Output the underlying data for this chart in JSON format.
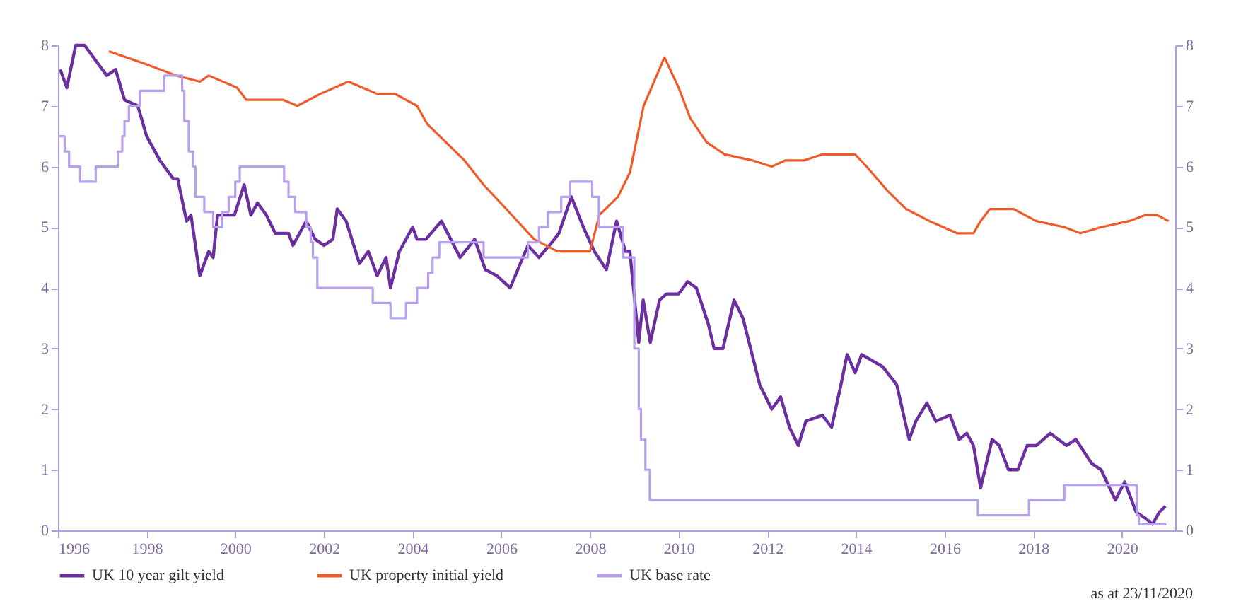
{
  "chart_data": {
    "type": "line",
    "xlim": [
      1996,
      2021.2
    ],
    "xticks": [
      1996,
      1998,
      2000,
      2002,
      2004,
      2006,
      2008,
      2010,
      2012,
      2014,
      2016,
      2018,
      2020
    ],
    "ylim": [
      0,
      8
    ],
    "yticks": [
      0,
      1,
      2,
      3,
      4,
      5,
      6,
      7,
      8
    ],
    "y2lim": [
      0,
      8
    ],
    "y2ticks": [
      0,
      1,
      2,
      3,
      4,
      5,
      6,
      7,
      8
    ],
    "legend": "bottom",
    "grid": false,
    "marker": "none",
    "line_style": "solid",
    "annotations": [
      "as at 23/11/2020"
    ],
    "series": [
      {
        "name": "UK 10 year gilt yield",
        "color": "#6b2fa0",
        "x": [
          1996.05,
          1996.2,
          1996.4,
          1996.6,
          1996.9,
          1997.1,
          1997.3,
          1997.5,
          1997.8,
          1998.0,
          1998.3,
          1998.6,
          1998.7,
          1998.9,
          1999.0,
          1999.2,
          1999.4,
          1999.5,
          1999.6,
          1999.8,
          1999.98,
          2000.2,
          2000.35,
          2000.5,
          2000.7,
          2000.9,
          2001.2,
          2001.3,
          2001.6,
          2001.8,
          2002.0,
          2002.2,
          2002.3,
          2002.5,
          2002.8,
          2003.0,
          2003.2,
          2003.4,
          2003.5,
          2003.7,
          2004.0,
          2004.1,
          2004.3,
          2004.65,
          2005.07,
          2005.4,
          2005.64,
          2005.9,
          2006.2,
          2006.6,
          2006.85,
          2007.2,
          2007.3,
          2007.58,
          2007.85,
          2008.1,
          2008.37,
          2008.6,
          2008.8,
          2008.9,
          2009.1,
          2009.2,
          2009.36,
          2009.57,
          2009.73,
          2010.0,
          2010.2,
          2010.4,
          2010.67,
          2010.8,
          2011.0,
          2011.25,
          2011.45,
          2011.83,
          2012.1,
          2012.3,
          2012.5,
          2012.7,
          2012.87,
          2013.24,
          2013.45,
          2013.66,
          2013.8,
          2013.98,
          2014.13,
          2014.6,
          2014.92,
          2015.2,
          2015.35,
          2015.6,
          2015.8,
          2016.12,
          2016.33,
          2016.5,
          2016.65,
          2016.81,
          2017.07,
          2017.23,
          2017.44,
          2017.65,
          2017.86,
          2018.07,
          2018.38,
          2018.75,
          2018.96,
          2019.32,
          2019.53,
          2019.85,
          2020.06,
          2020.32,
          2020.53,
          2020.69,
          2020.84,
          2020.98
        ],
        "values": [
          7.6,
          7.3,
          8.0,
          8.0,
          7.7,
          7.5,
          7.6,
          7.1,
          7.0,
          6.5,
          6.1,
          5.8,
          5.8,
          5.1,
          5.2,
          4.2,
          4.6,
          4.5,
          5.2,
          5.2,
          5.2,
          5.7,
          5.2,
          5.4,
          5.2,
          4.9,
          4.9,
          4.7,
          5.1,
          4.8,
          4.7,
          4.8,
          5.3,
          5.1,
          4.4,
          4.6,
          4.2,
          4.5,
          4.0,
          4.6,
          5.0,
          4.8,
          4.8,
          5.1,
          4.5,
          4.8,
          4.3,
          4.2,
          4.0,
          4.7,
          4.5,
          4.8,
          4.9,
          5.5,
          5.0,
          4.6,
          4.3,
          5.1,
          4.6,
          4.6,
          3.1,
          3.8,
          3.1,
          3.8,
          3.9,
          3.9,
          4.1,
          4.0,
          3.4,
          3.0,
          3.0,
          3.8,
          3.5,
          2.4,
          2.0,
          2.2,
          1.7,
          1.4,
          1.8,
          1.9,
          1.7,
          2.4,
          2.9,
          2.6,
          2.9,
          2.7,
          2.4,
          1.5,
          1.8,
          2.1,
          1.8,
          1.9,
          1.5,
          1.6,
          1.4,
          0.7,
          1.5,
          1.4,
          1.0,
          1.0,
          1.4,
          1.4,
          1.6,
          1.4,
          1.5,
          1.1,
          1.0,
          0.5,
          0.8,
          0.3,
          0.2,
          0.1,
          0.3,
          0.4
        ]
      },
      {
        "name": "UK property initial yield",
        "color": "#f05a28",
        "x": [
          1997.15,
          1997.94,
          1998.67,
          1999.2,
          1999.4,
          2000.04,
          2000.25,
          2001.08,
          2001.4,
          2001.92,
          2002.55,
          2003.2,
          2003.6,
          2004.1,
          2004.33,
          2004.75,
          2005.17,
          2005.6,
          2006.11,
          2006.74,
          2007.27,
          2007.79,
          2008.0,
          2008.21,
          2008.63,
          2008.9,
          2009.21,
          2009.68,
          2010.0,
          2010.26,
          2010.63,
          2011.04,
          2011.67,
          2012.1,
          2012.4,
          2012.82,
          2013.24,
          2013.98,
          2014.24,
          2014.71,
          2015.13,
          2015.66,
          2016.28,
          2016.65,
          2016.81,
          2017.02,
          2017.55,
          2018.07,
          2018.7,
          2019.06,
          2019.53,
          2020.16,
          2020.53,
          2020.79,
          2021.05
        ],
        "values": [
          7.9,
          7.7,
          7.5,
          7.4,
          7.5,
          7.3,
          7.1,
          7.1,
          7.0,
          7.2,
          7.4,
          7.2,
          7.2,
          7.0,
          6.7,
          6.4,
          6.1,
          5.7,
          5.3,
          4.8,
          4.6,
          4.6,
          4.6,
          5.2,
          5.5,
          5.9,
          7.0,
          7.8,
          7.3,
          6.8,
          6.4,
          6.2,
          6.1,
          6.0,
          6.1,
          6.1,
          6.2,
          6.2,
          6.0,
          5.6,
          5.3,
          5.1,
          4.9,
          4.9,
          5.1,
          5.3,
          5.3,
          5.1,
          5.0,
          4.9,
          5.0,
          5.1,
          5.2,
          5.2,
          5.1
        ]
      },
      {
        "name": "UK base rate",
        "type": "step",
        "color": "#b7a0ee",
        "x": [
          1996.0,
          1996.15,
          1996.25,
          1996.5,
          1996.85,
          1997.35,
          1997.45,
          1997.5,
          1997.6,
          1997.85,
          1998.4,
          1998.8,
          1998.85,
          1998.95,
          1999.05,
          1999.1,
          1999.3,
          1999.5,
          1999.7,
          1999.85,
          2000.0,
          2000.1,
          2001.1,
          2001.2,
          2001.35,
          2001.6,
          2001.7,
          2001.75,
          2001.85,
          2003.1,
          2003.5,
          2003.85,
          2004.1,
          2004.35,
          2004.45,
          2004.6,
          2005.6,
          2006.6,
          2006.85,
          2007.05,
          2007.35,
          2007.55,
          2008.05,
          2008.2,
          2008.75,
          2009.0,
          2009.1,
          2009.15,
          2009.25,
          2009.35,
          2016.75,
          2017.9,
          2018.7,
          2020.33,
          2020.38,
          2021.0
        ],
        "values": [
          6.5,
          6.25,
          6.0,
          5.75,
          6.0,
          6.25,
          6.5,
          6.75,
          7.0,
          7.25,
          7.5,
          7.25,
          6.75,
          6.25,
          6.0,
          5.5,
          5.25,
          5.0,
          5.25,
          5.5,
          5.75,
          6.0,
          5.75,
          5.5,
          5.25,
          5.0,
          4.75,
          4.5,
          4.0,
          3.75,
          3.5,
          3.75,
          4.0,
          4.25,
          4.5,
          4.75,
          4.5,
          4.75,
          5.0,
          5.25,
          5.5,
          5.75,
          5.5,
          5.0,
          4.5,
          3.0,
          2.0,
          1.5,
          1.0,
          0.5,
          0.25,
          0.5,
          0.75,
          0.25,
          0.1,
          0.1
        ]
      }
    ]
  }
}
